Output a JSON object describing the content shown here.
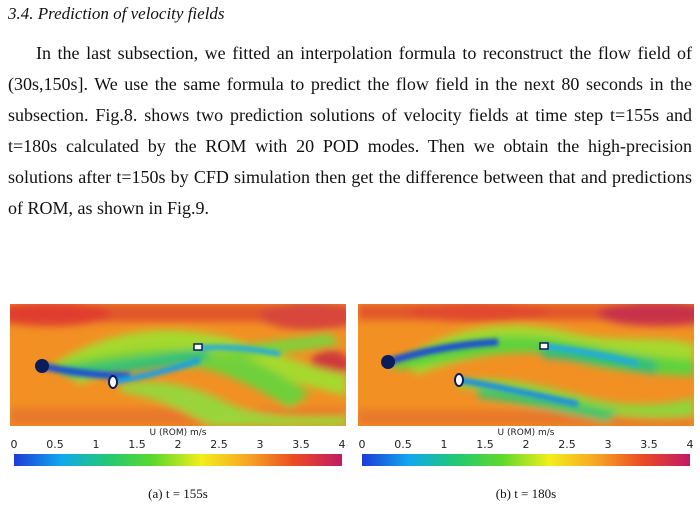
{
  "section": {
    "title": "3.4. Prediction of velocity fields"
  },
  "paragraph": {
    "text": "In the last subsection, we fitted an interpolation formula to reconstruct the flow field of (30s,150s]. We use the same formula to predict the flow field in the next 80 seconds in the subsection. Fig.8. shows two prediction solutions of velocity fields at time step t=155s and t=180s calculated by the ROM with 20 POD modes. Then we obtain the high-precision solutions after t=150s by CFD simulation then get the difference between that and predictions of ROM, as shown in Fig.9."
  },
  "colorbar": {
    "title": "U (ROM)  m/s",
    "ticks": [
      "0",
      "0.5",
      "1",
      "1.5",
      "2",
      "2.5",
      "3",
      "3.5",
      "4"
    ],
    "range": [
      0,
      4
    ],
    "colors": [
      "#1e3ad8",
      "#11a8ee",
      "#22c873",
      "#5fd92b",
      "#f2ee1a",
      "#f7a524",
      "#ea4a24",
      "#c21a66"
    ]
  },
  "figures": [
    {
      "caption": "(a) t = 155s"
    },
    {
      "caption": "(b) t = 180s"
    }
  ]
}
